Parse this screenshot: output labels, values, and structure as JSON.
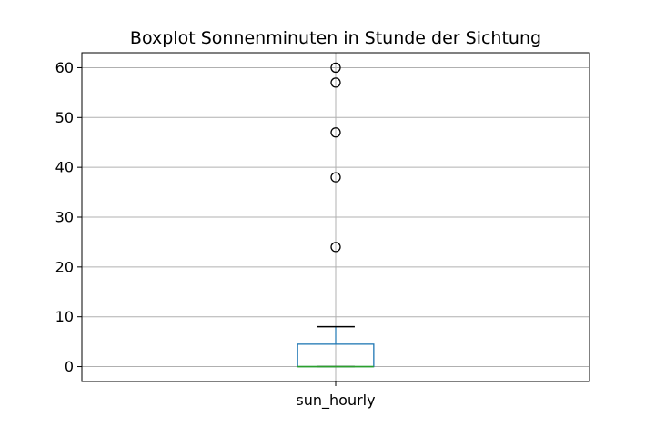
{
  "chart_data": {
    "type": "box",
    "title": "Boxplot Sonnenminuten in Stunde der Sichtung",
    "xlabel": "",
    "ylabel": "",
    "ylim": [
      -3,
      63
    ],
    "yticks": [
      0,
      10,
      20,
      30,
      40,
      50,
      60
    ],
    "grid": true,
    "colors": {
      "box": "#1f77b4",
      "median": "#2ca02c",
      "whisker": "#1f77b4",
      "cap": "#000000",
      "grid": "#b0b0b0",
      "flier": "#000000"
    },
    "series": [
      {
        "category": "sun_hourly",
        "min": 0,
        "q1": 0,
        "median": 0,
        "q3": 4.5,
        "whisker_high": 8,
        "outliers": [
          24,
          38,
          47,
          57,
          60
        ]
      }
    ]
  }
}
